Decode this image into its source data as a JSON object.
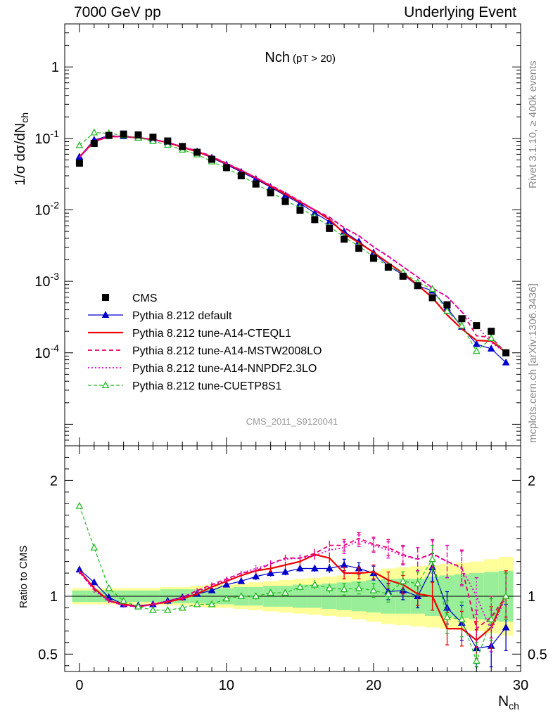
{
  "header": {
    "left": "7000 GeV pp",
    "right": "Underlying Event"
  },
  "side_text": {
    "rivet": "Rivet 3.1.10, ≥ 400k events",
    "mcplots": "mcplots.cern.ch [arXiv:1306.3436]"
  },
  "chart_data": {
    "type": "line",
    "title": "Nch",
    "title_sub": "(pT > 20)",
    "analysis_id": "CMS_2011_S9120041",
    "xlabel": "N",
    "xlabel_sub": "ch",
    "ylabel": "1/σ dσ/dN",
    "ylabel_sub": "ch",
    "ratio_ylabel": "Ratio to CMS",
    "xlim": [
      -1,
      30
    ],
    "ylim": [
      5e-06,
      4
    ],
    "ylog": true,
    "ratio_ylim": [
      0.35,
      2.3
    ],
    "x_ticks": [
      "0",
      "10",
      "20",
      "30"
    ],
    "y_ticks": [
      {
        "base": "10",
        "exp": "-4",
        "value": 0.0001
      },
      {
        "base": "10",
        "exp": "-3",
        "value": 0.001
      },
      {
        "base": "10",
        "exp": "-2",
        "value": 0.01
      },
      {
        "base": "10",
        "exp": "-1",
        "value": 0.1
      },
      {
        "base": "1",
        "exp": "",
        "value": 1
      }
    ],
    "ratio_ticks": [
      "0.5",
      "1",
      "2"
    ],
    "legend_position": "bottom-left",
    "x": [
      0,
      1,
      2,
      3,
      4,
      5,
      6,
      7,
      8,
      9,
      10,
      11,
      12,
      13,
      14,
      15,
      16,
      17,
      18,
      19,
      20,
      21,
      22,
      23,
      24,
      25,
      26,
      27,
      28,
      29
    ],
    "data": {
      "name": "CMS",
      "color": "#000000",
      "values": [
        0.045,
        0.085,
        0.11,
        0.115,
        0.112,
        0.104,
        0.092,
        0.077,
        0.064,
        0.051,
        0.039,
        0.03,
        0.023,
        0.0173,
        0.0131,
        0.0099,
        0.0073,
        0.0055,
        0.0039,
        0.0029,
        0.0021,
        0.00158,
        0.00118,
        0.00087,
        0.00059,
        0.00047,
        0.0003,
        0.00024,
        0.0002,
        0.0001
      ]
    },
    "band_green": [
      0.05,
      0.05,
      0.05,
      0.05,
      0.05,
      0.05,
      0.06,
      0.06,
      0.06,
      0.07,
      0.07,
      0.08,
      0.08,
      0.09,
      0.09,
      0.1,
      0.1,
      0.11,
      0.12,
      0.13,
      0.14,
      0.15,
      0.15,
      0.15,
      0.17,
      0.18,
      0.19,
      0.2,
      0.21,
      0.22
    ],
    "band_yellow": [
      0.07,
      0.07,
      0.07,
      0.07,
      0.07,
      0.07,
      0.08,
      0.08,
      0.09,
      0.1,
      0.1,
      0.11,
      0.12,
      0.13,
      0.14,
      0.15,
      0.16,
      0.17,
      0.18,
      0.2,
      0.22,
      0.24,
      0.25,
      0.26,
      0.27,
      0.28,
      0.29,
      0.3,
      0.32,
      0.34
    ],
    "series": [
      {
        "name": "Pythia 8.212 default",
        "color": "#0000cc",
        "dash": "",
        "marker": "triangle-filled",
        "width": 1.2,
        "ratio": [
          1.23,
          1.12,
          0.99,
          0.93,
          0.92,
          0.93,
          0.96,
          0.99,
          1.02,
          1.05,
          1.1,
          1.13,
          1.17,
          1.2,
          1.21,
          1.24,
          1.24,
          1.24,
          1.27,
          1.24,
          1.2,
          1.04,
          1.05,
          1.0,
          1.25,
          0.9,
          0.77,
          0.55,
          0.57,
          0.73
        ],
        "ratio_err": [
          0.02,
          0.02,
          0.02,
          0.02,
          0.02,
          0.02,
          0.02,
          0.02,
          0.02,
          0.02,
          0.02,
          0.02,
          0.03,
          0.03,
          0.03,
          0.03,
          0.03,
          0.04,
          0.05,
          0.05,
          0.06,
          0.07,
          0.08,
          0.1,
          0.12,
          0.14,
          0.15,
          0.16,
          0.18,
          0.2
        ]
      },
      {
        "name": "Pythia 8.212 tune-A14-CTEQL1",
        "color": "#ee0000",
        "dash": "",
        "marker": "none",
        "width": 2.2,
        "ratio": [
          1.22,
          1.07,
          0.96,
          0.93,
          0.91,
          0.93,
          0.95,
          0.98,
          1.02,
          1.08,
          1.13,
          1.18,
          1.22,
          1.24,
          1.27,
          1.3,
          1.36,
          1.33,
          1.2,
          1.2,
          1.21,
          1.14,
          1.1,
          1.02,
          1.0,
          0.72,
          0.72,
          0.62,
          0.73,
          1.02
        ],
        "ratio_err": [
          0.02,
          0.02,
          0.02,
          0.02,
          0.02,
          0.02,
          0.02,
          0.02,
          0.02,
          0.02,
          0.02,
          0.02,
          0.03,
          0.03,
          0.03,
          0.03,
          0.04,
          0.04,
          0.05,
          0.05,
          0.06,
          0.07,
          0.08,
          0.1,
          0.12,
          0.14,
          0.15,
          0.16,
          0.18,
          0.2
        ]
      },
      {
        "name": "Pythia 8.212 tune-A14-MSTW2008LO",
        "color": "#e8006a",
        "dash": "6,4",
        "marker": "none",
        "width": 1.8,
        "ratio": [
          1.21,
          1.06,
          0.96,
          0.92,
          0.91,
          0.93,
          0.96,
          0.99,
          1.05,
          1.1,
          1.15,
          1.2,
          1.22,
          1.28,
          1.33,
          1.33,
          1.37,
          1.44,
          1.44,
          1.5,
          1.45,
          1.42,
          1.36,
          1.32,
          1.37,
          1.3,
          1.25,
          0.72,
          0.82,
          1.0
        ],
        "ratio_err": [
          0.02,
          0.02,
          0.02,
          0.02,
          0.02,
          0.02,
          0.02,
          0.02,
          0.02,
          0.02,
          0.02,
          0.02,
          0.03,
          0.03,
          0.03,
          0.03,
          0.04,
          0.04,
          0.05,
          0.05,
          0.06,
          0.07,
          0.08,
          0.1,
          0.12,
          0.14,
          0.15,
          0.16,
          0.18,
          0.2
        ]
      },
      {
        "name": "Pythia 8.212 tune-A14-NNPDF2.3LO",
        "color": "#dd00cc",
        "dash": "2,3",
        "marker": "none",
        "width": 1.8,
        "ratio": [
          1.21,
          1.05,
          0.96,
          0.92,
          0.91,
          0.93,
          0.96,
          0.99,
          1.04,
          1.09,
          1.14,
          1.2,
          1.24,
          1.28,
          1.32,
          1.33,
          1.35,
          1.4,
          1.42,
          1.48,
          1.44,
          1.4,
          1.35,
          1.32,
          1.36,
          1.3,
          1.24,
          1.0,
          0.7,
          1.0
        ],
        "ratio_err": [
          0.02,
          0.02,
          0.02,
          0.02,
          0.02,
          0.02,
          0.02,
          0.02,
          0.02,
          0.02,
          0.02,
          0.02,
          0.03,
          0.03,
          0.03,
          0.03,
          0.04,
          0.04,
          0.05,
          0.05,
          0.06,
          0.07,
          0.08,
          0.1,
          0.12,
          0.14,
          0.15,
          0.16,
          0.18,
          0.2
        ]
      },
      {
        "name": "Pythia 8.212 tune-CUETP8S1",
        "color": "#22bb22",
        "dash": "5,3",
        "marker": "triangle-open",
        "width": 1.2,
        "ratio": [
          1.78,
          1.42,
          1.07,
          0.96,
          0.91,
          0.88,
          0.88,
          0.9,
          0.93,
          0.93,
          0.98,
          1.0,
          1.0,
          1.03,
          1.03,
          1.08,
          1.1,
          1.07,
          1.06,
          1.07,
          1.05,
          1.02,
          1.13,
          1.11,
          1.32,
          0.82,
          0.8,
          0.44,
          0.8,
          1.0
        ],
        "ratio_err": [
          0.02,
          0.02,
          0.02,
          0.02,
          0.02,
          0.02,
          0.02,
          0.02,
          0.02,
          0.02,
          0.02,
          0.02,
          0.03,
          0.03,
          0.03,
          0.03,
          0.04,
          0.04,
          0.05,
          0.05,
          0.06,
          0.07,
          0.08,
          0.1,
          0.12,
          0.14,
          0.15,
          0.16,
          0.18,
          0.2
        ]
      }
    ]
  }
}
